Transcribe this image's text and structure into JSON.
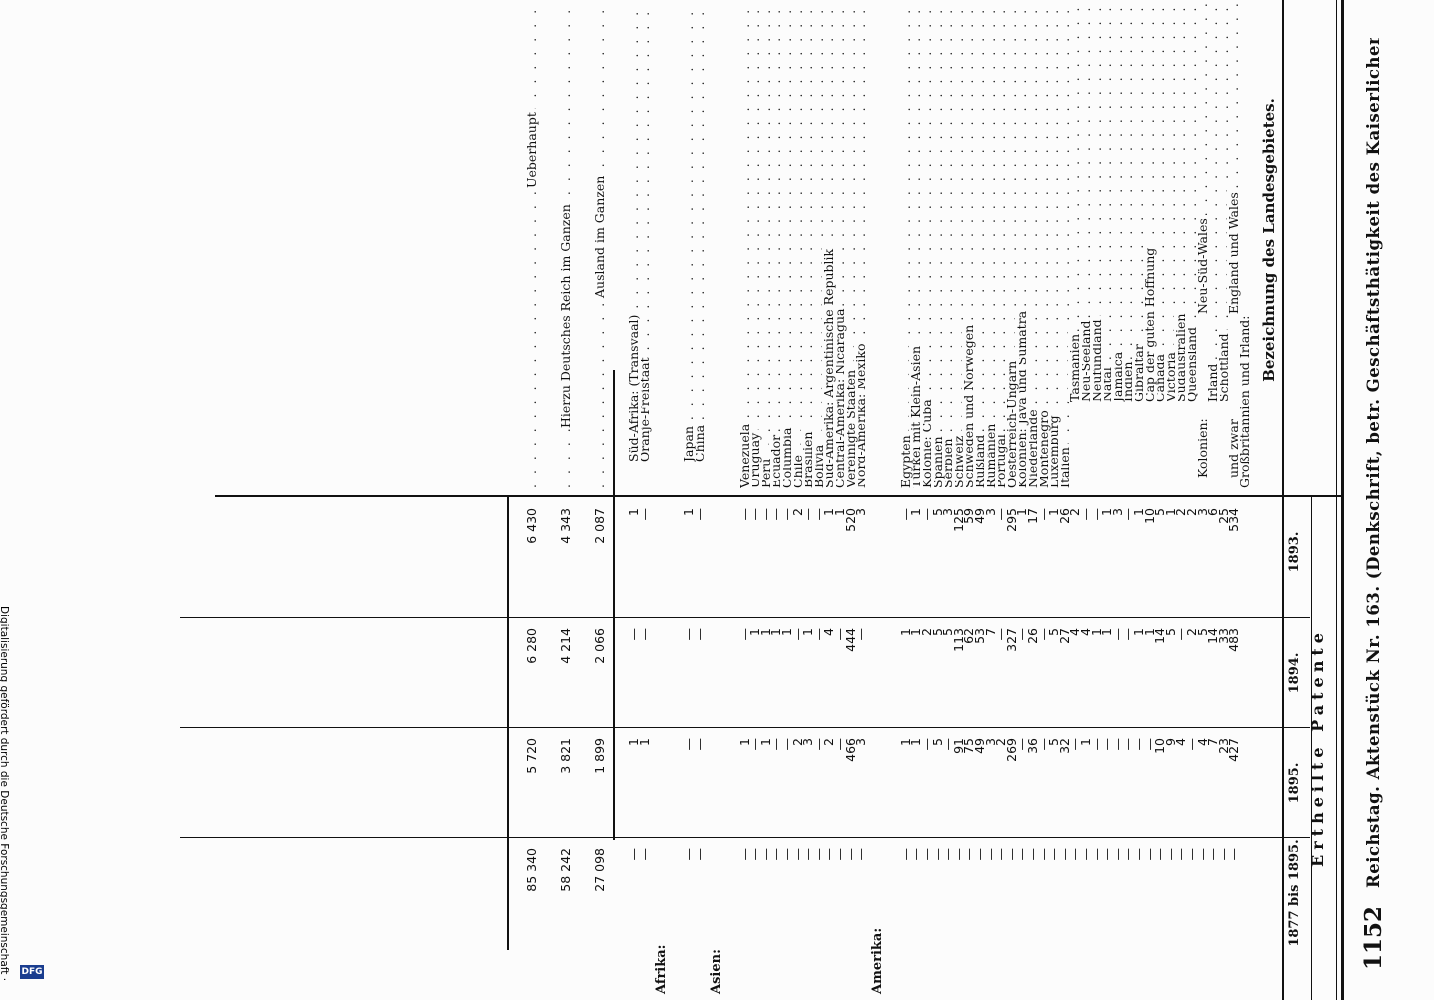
{
  "header": {
    "page_number": "1152",
    "running_title": "Reichstag. Aktenstück Nr. 163. (Denkschrift, betr. Geschäftsthätigkeit des Kaiserlichen Patentamts.)"
  },
  "table": {
    "column_header_label": "Bezeichnung des Landesgebietes.",
    "group_header": "Ertheilte Patente",
    "years": [
      "1893.",
      "1894.",
      "1895.",
      "1877 bis 1895."
    ],
    "sections": [
      {
        "title": "",
        "rows": [
          {
            "label": "Großbritannien und Irland:",
            "values": [
              "",
              "",
              "",
              ""
            ],
            "indent": 0,
            "dots": false
          },
          {
            "label": "England und Wales",
            "prefix": "und zwar",
            "values": [
              "534",
              "483",
              "427",
              "—"
            ],
            "indent": 1,
            "dots": true
          },
          {
            "label": "Schottland",
            "values": [
              "25",
              "33",
              "23",
              "—"
            ],
            "indent": 1,
            "dots": true
          },
          {
            "label": "Irland",
            "values": [
              "6",
              "14",
              "7",
              "—"
            ],
            "indent": 1,
            "dots": true
          },
          {
            "label": "Neu-Süd-Wales",
            "prefix": "Kolonien:",
            "values": [
              "3",
              "5",
              "4",
              "—"
            ],
            "indent": 1,
            "dots": true
          },
          {
            "label": "Queensland",
            "values": [
              "2",
              "2",
              "—",
              "—"
            ],
            "indent": 1,
            "dots": true
          },
          {
            "label": "Südaustralien",
            "values": [
              "2",
              "—",
              "4",
              "—"
            ],
            "indent": 1,
            "dots": true
          },
          {
            "label": "Victoria",
            "values": [
              "1",
              "5",
              "9",
              "—"
            ],
            "indent": 1,
            "dots": true
          },
          {
            "label": "Canada",
            "values": [
              "5",
              "14",
              "10",
              "—"
            ],
            "indent": 1,
            "dots": true
          },
          {
            "label": "Cap der guten Hoffnung",
            "values": [
              "10",
              "1",
              "—",
              "—"
            ],
            "indent": 1,
            "dots": true
          },
          {
            "label": "Gibraltar",
            "values": [
              "1",
              "1",
              "—",
              "—"
            ],
            "indent": 1,
            "dots": true
          },
          {
            "label": "Indien",
            "values": [
              "—",
              "—",
              "—",
              "—"
            ],
            "indent": 1,
            "dots": true
          },
          {
            "label": "Jamaica",
            "values": [
              "3",
              "—",
              "—",
              "—"
            ],
            "indent": 1,
            "dots": true
          },
          {
            "label": "Natal",
            "values": [
              "1",
              "1",
              "—",
              "—"
            ],
            "indent": 1,
            "dots": true
          },
          {
            "label": "Neufundland",
            "values": [
              "—",
              "1",
              "—",
              "—"
            ],
            "indent": 1,
            "dots": true
          },
          {
            "label": "Neu-Seeland",
            "values": [
              "—",
              "4",
              "1",
              "—"
            ],
            "indent": 1,
            "dots": true
          },
          {
            "label": "Tasmanien",
            "values": [
              "2",
              "4",
              "—",
              "—"
            ],
            "indent": 1,
            "dots": true
          },
          {
            "label": "Italien",
            "values": [
              "26",
              "27",
              "32",
              "—"
            ],
            "indent": 0,
            "dots": true
          },
          {
            "label": "Luxemburg",
            "values": [
              "1",
              "5",
              "5",
              "—"
            ],
            "indent": 0,
            "dots": true
          },
          {
            "label": "Montenegro",
            "values": [
              "—",
              "—",
              "—",
              "—"
            ],
            "indent": 0,
            "dots": true
          },
          {
            "label": "Niederlande",
            "values": [
              "17",
              "26",
              "36",
              "—"
            ],
            "indent": 0,
            "dots": true
          },
          {
            "label": "Kolonien: Java und Sumatra",
            "values": [
              "1",
              "—",
              "—",
              "—"
            ],
            "indent": 0,
            "dots": true
          },
          {
            "label": "Oesterreich-Ungarn",
            "values": [
              "295",
              "327",
              "269",
              "—"
            ],
            "indent": 0,
            "dots": true
          },
          {
            "label": "Portugal",
            "values": [
              "—",
              "—",
              "2",
              "—"
            ],
            "indent": 0,
            "dots": true
          },
          {
            "label": "Rumänien",
            "values": [
              "3",
              "7",
              "3",
              "—"
            ],
            "indent": 0,
            "dots": true
          },
          {
            "label": "Rußland",
            "values": [
              "49",
              "53",
              "49",
              "—"
            ],
            "indent": 0,
            "dots": true
          },
          {
            "label": "Schweden und Norwegen",
            "values": [
              "59",
              "62",
              "75",
              "—"
            ],
            "indent": 0,
            "dots": true
          },
          {
            "label": "Schweiz",
            "values": [
              "125",
              "113",
              "91",
              "—"
            ],
            "indent": 0,
            "dots": true
          },
          {
            "label": "Serbien",
            "values": [
              "3",
              "5",
              "—",
              "—"
            ],
            "indent": 0,
            "dots": true
          },
          {
            "label": "Spanien",
            "values": [
              "5",
              "5",
              "5",
              "—"
            ],
            "indent": 0,
            "dots": true
          },
          {
            "label": "Kolonie: Cuba",
            "values": [
              "—",
              "2",
              "—",
              "—"
            ],
            "indent": 0,
            "dots": true
          },
          {
            "label": "Türkei mit Klein-Asien",
            "values": [
              "1",
              "1",
              "1",
              "—"
            ],
            "indent": 0,
            "dots": true
          },
          {
            "label": "Egypten",
            "values": [
              "—",
              "1",
              "1",
              "—"
            ],
            "indent": 0,
            "dots": true
          }
        ]
      },
      {
        "title": "Amerika:",
        "rows": [
          {
            "label": "Nord-Amerika: Mexiko",
            "values": [
              "3",
              "—",
              "3",
              "—"
            ],
            "indent": 0,
            "dots": true
          },
          {
            "label": "Vereinigte Staaten",
            "values": [
              "520",
              "444",
              "466",
              "—"
            ],
            "indent": 0,
            "dots": true
          },
          {
            "label": "Central-Amerika: Nicaragua",
            "values": [
              "1",
              "—",
              "—",
              "—"
            ],
            "indent": 0,
            "dots": true
          },
          {
            "label": "Süd-Amerika: Argentinische Republik",
            "values": [
              "1",
              "4",
              "2",
              "—"
            ],
            "indent": 0,
            "dots": true
          },
          {
            "label": "Bolivia",
            "values": [
              "—",
              "—",
              "—",
              "—"
            ],
            "indent": 0,
            "dots": true
          },
          {
            "label": "Brasilien",
            "values": [
              "—",
              "1",
              "3",
              "—"
            ],
            "indent": 0,
            "dots": true
          },
          {
            "label": "Chile",
            "values": [
              "2",
              "—",
              "2",
              "—"
            ],
            "indent": 0,
            "dots": true
          },
          {
            "label": "Columbia",
            "values": [
              "—",
              "1",
              "—",
              "—"
            ],
            "indent": 0,
            "dots": true
          },
          {
            "label": "Ecuador",
            "values": [
              "—",
              "1",
              "—",
              "—"
            ],
            "indent": 0,
            "dots": true
          },
          {
            "label": "Peru",
            "values": [
              "—",
              "1",
              "1",
              "—"
            ],
            "indent": 0,
            "dots": true
          },
          {
            "label": "Uruguay",
            "values": [
              "—",
              "1",
              "—",
              "—"
            ],
            "indent": 0,
            "dots": true
          },
          {
            "label": "Venezuela",
            "values": [
              "—",
              "—",
              "1",
              "—"
            ],
            "indent": 0,
            "dots": true
          }
        ]
      },
      {
        "title": "Asien:",
        "rows": [
          {
            "label": "China",
            "values": [
              "—",
              "—",
              "—",
              "—"
            ],
            "indent": 1,
            "dots": true
          },
          {
            "label": "Japan",
            "values": [
              "1",
              "—",
              "—",
              "—"
            ],
            "indent": 1,
            "dots": true
          }
        ]
      },
      {
        "title": "Afrika:",
        "rows": [
          {
            "label": "Oranje-Freistaat",
            "values": [
              "—",
              "—",
              "1",
              "—"
            ],
            "indent": 1,
            "dots": true
          },
          {
            "label": "Süd-Afrika: (Transvaal)",
            "values": [
              "1",
              "—",
              "1",
              "—"
            ],
            "indent": 1,
            "dots": true
          }
        ]
      }
    ],
    "totals": [
      {
        "label": "Ausland im Ganzen",
        "values": [
          "2 087",
          "2 066",
          "1 899",
          "27 098"
        ]
      },
      {
        "label": "Hierzu Deutsches Reich im Ganzen",
        "values": [
          "4 343",
          "4 214",
          "3 821",
          "58 242"
        ]
      },
      {
        "label": "Ueberhaupt",
        "values": [
          "6 430",
          "6 280",
          "5 720",
          "85 340"
        ]
      }
    ]
  },
  "side_note": {
    "text": "Digitalisierung gefördert durch die Deutsche Forschungsgemeinschaft ·",
    "badge": "DFG"
  }
}
